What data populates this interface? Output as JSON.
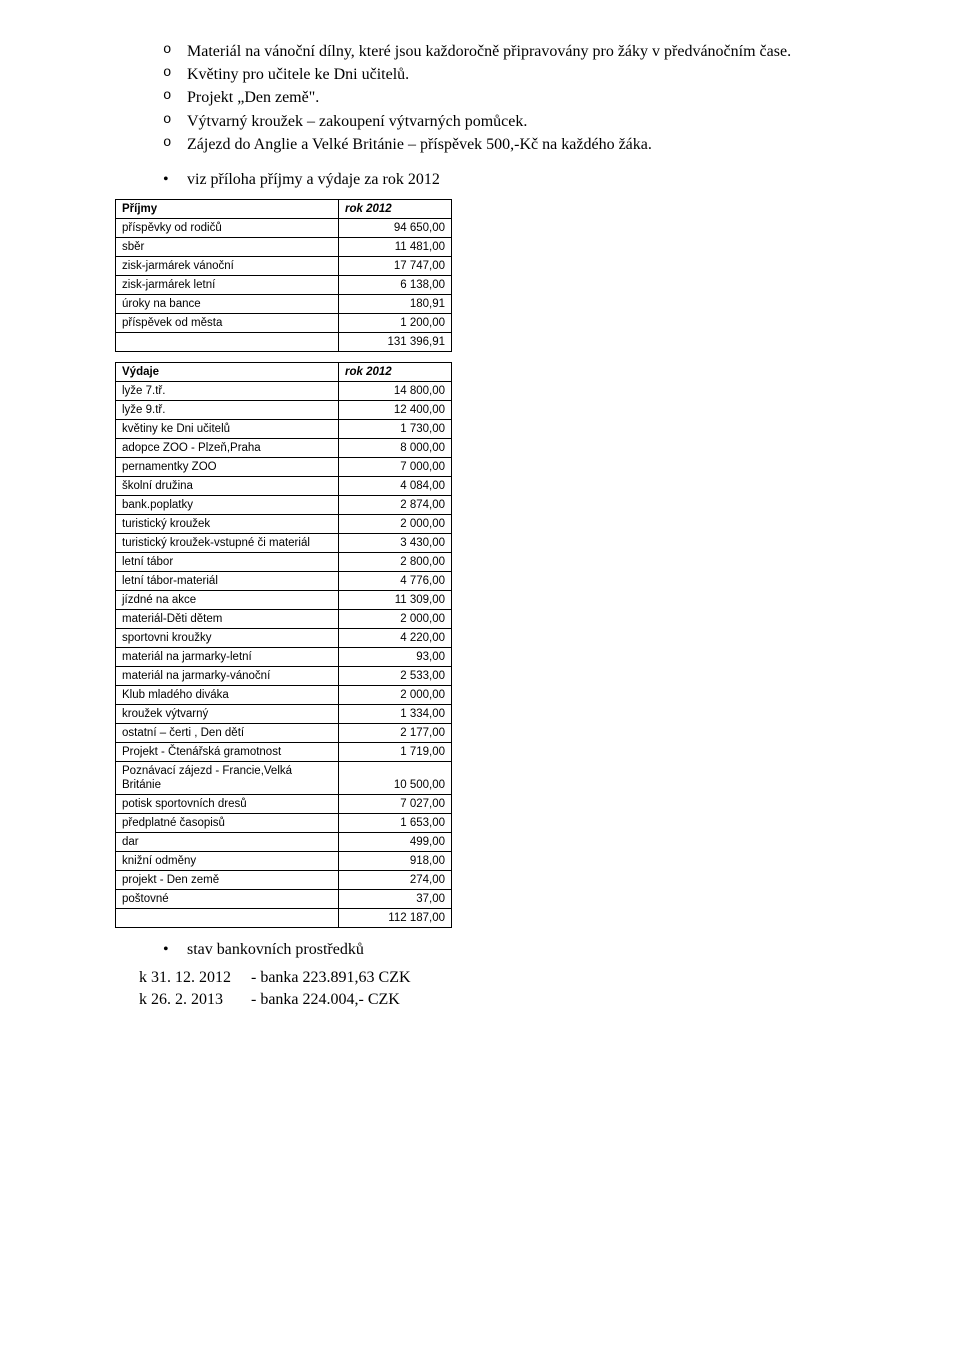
{
  "intro_bullets": [
    "Materiál na vánoční dílny, které jsou každoročně připravovány pro žáky v předvánočním čase.",
    "Květiny pro učitele ke Dni učitelů.",
    "Projekt „Den země\".",
    "Výtvarný kroužek – zakoupení výtvarných pomůcek.",
    "Zájezd do Anglie a Velké Británie – příspěvek 500,-Kč na každého žáka."
  ],
  "attach_bullet": "viz příloha příjmy a výdaje za rok 2012",
  "table_prijmy": {
    "header": [
      "Příjmy",
      "rok 2012"
    ],
    "rows": [
      [
        "příspěvky od rodičů",
        "94 650,00"
      ],
      [
        "sběr",
        "11 481,00"
      ],
      [
        "zisk-jarmárek vánoční",
        "17 747,00"
      ],
      [
        "zisk-jarmárek letní",
        "6 138,00"
      ],
      [
        "úroky na bance",
        "180,91"
      ],
      [
        "příspěvek od města",
        "1 200,00"
      ],
      [
        "",
        "131 396,91"
      ]
    ]
  },
  "table_vydaje": {
    "header": [
      "Výdaje",
      "rok 2012"
    ],
    "rows": [
      [
        "lyže 7.tř.",
        "14 800,00"
      ],
      [
        "lyže 9.tř.",
        "12 400,00"
      ],
      [
        "květiny ke Dni učitelů",
        "1 730,00"
      ],
      [
        "adopce ZOO - Plzeň,Praha",
        "8 000,00"
      ],
      [
        "pernamentky ZOO",
        "7 000,00"
      ],
      [
        "školní družina",
        "4 084,00"
      ],
      [
        "bank.poplatky",
        "2 874,00"
      ],
      [
        "turistický kroužek",
        "2 000,00"
      ],
      [
        "turistický kroužek-vstupné či materiál",
        "3 430,00"
      ],
      [
        "letní tábor",
        "2 800,00"
      ],
      [
        "letní tábor-materiál",
        "4 776,00"
      ],
      [
        "jízdné na akce",
        "11 309,00"
      ],
      [
        "materiál-Děti dětem",
        "2 000,00"
      ],
      [
        "sportovni kroužky",
        "4 220,00"
      ],
      [
        "materiál na jarmarky-letní",
        "93,00"
      ],
      [
        "materiál na jarmarky-vánoční",
        "2 533,00"
      ],
      [
        "Klub mladého diváka",
        "2 000,00"
      ],
      [
        "kroužek výtvarný",
        "1 334,00"
      ],
      [
        "ostatní – čerti , Den dětí",
        "2 177,00"
      ],
      [
        "Projekt - Čtenářská gramotnost",
        "1 719,00"
      ],
      [
        "Poznávací zájezd - Francie,Velká Británie",
        "10 500,00"
      ],
      [
        "potisk sportovních dresů",
        "7 027,00"
      ],
      [
        "předplatné časopisů",
        "1 653,00"
      ],
      [
        "dar",
        "499,00"
      ],
      [
        "knižní odměny",
        "918,00"
      ],
      [
        "projekt - Den země",
        "274,00"
      ],
      [
        "poštovné",
        "37,00"
      ],
      [
        "",
        "112 187,00"
      ]
    ]
  },
  "footer_bullet": "stav bankovních prostředků",
  "footer_lines": [
    "k 31. 12. 2012     - banka 223.891,63 CZK",
    "k 26. 2. 2013       - banka 224.004,- CZK"
  ]
}
